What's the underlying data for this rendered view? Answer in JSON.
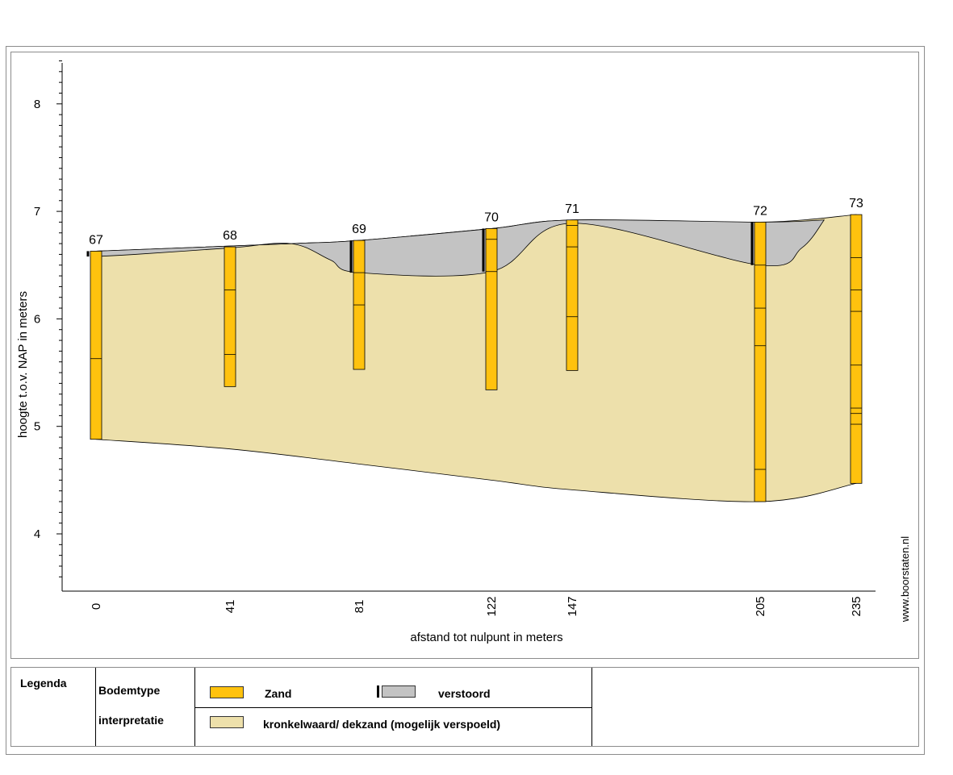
{
  "colors": {
    "zand": "#ffc20e",
    "verstoord": "#c3c3c3",
    "dekzand": "#ede0ab",
    "outline": "#000000"
  },
  "chart_data": {
    "type": "cross-section",
    "ylabel": "hoogte t.o.v. NAP in meters",
    "xlabel": "afstand tot nulpunt in meters",
    "y_ticks": [
      4,
      5,
      6,
      7,
      8
    ],
    "ylim": [
      3.5,
      8.5
    ],
    "x_ticks": [
      0,
      41,
      81,
      122,
      147,
      205,
      235
    ],
    "borings": [
      {
        "id": "67",
        "x": 0,
        "top": 6.63,
        "bottom": 4.88,
        "layer_boundaries": [
          5.63
        ],
        "disturbed_to": 6.58
      },
      {
        "id": "68",
        "x": 41,
        "top": 6.67,
        "bottom": 5.37,
        "layer_boundaries": [
          6.27,
          5.67
        ]
      },
      {
        "id": "69",
        "x": 81,
        "top": 6.73,
        "bottom": 5.53,
        "layer_boundaries": [
          6.43,
          6.13
        ],
        "disturbed_to": 6.43
      },
      {
        "id": "70",
        "x": 122,
        "top": 6.84,
        "bottom": 5.34,
        "layer_boundaries": [
          6.74,
          6.44
        ],
        "disturbed_to": 6.44
      },
      {
        "id": "71",
        "x": 147,
        "top": 6.92,
        "bottom": 5.52,
        "layer_boundaries": [
          6.87,
          6.67,
          6.02
        ]
      },
      {
        "id": "72",
        "x": 205,
        "top": 6.9,
        "bottom": 4.3,
        "layer_boundaries": [
          6.5,
          6.1,
          5.75,
          4.6
        ],
        "disturbed_to": 6.5
      },
      {
        "id": "73",
        "x": 235,
        "top": 6.97,
        "bottom": 4.47,
        "layer_boundaries": [
          6.57,
          6.27,
          6.07,
          5.57,
          5.17,
          5.12,
          5.02
        ]
      }
    ],
    "surface": [
      [
        0,
        6.63
      ],
      [
        60,
        6.7
      ],
      [
        81,
        6.73
      ],
      [
        122,
        6.84
      ],
      [
        147,
        6.92
      ],
      [
        205,
        6.9
      ],
      [
        235,
        6.97
      ]
    ],
    "base": [
      [
        0,
        4.88
      ],
      [
        41,
        4.79
      ],
      [
        81,
        4.65
      ],
      [
        122,
        4.5
      ],
      [
        147,
        4.41
      ],
      [
        205,
        4.3
      ],
      [
        235,
        4.47
      ]
    ],
    "disturbed_bottom": [
      [
        0,
        6.58
      ],
      [
        12,
        6.6
      ],
      [
        41,
        6.66
      ],
      [
        60,
        6.7
      ],
      [
        72,
        6.55
      ],
      [
        81,
        6.43
      ],
      [
        122,
        6.44
      ],
      [
        147,
        6.89
      ],
      [
        205,
        6.5
      ],
      [
        218,
        6.66
      ],
      [
        225,
        6.92
      ]
    ]
  },
  "credit": "www.boorstaten.nl",
  "legend": {
    "title": "Legenda",
    "row1_label": "Bodemtype",
    "row2_label": "interpretatie",
    "zand_label": "Zand",
    "verstoord_label": "verstoord",
    "dekzand_label": "kronkelwaard/ dekzand (mogelijk verspoeld)"
  }
}
